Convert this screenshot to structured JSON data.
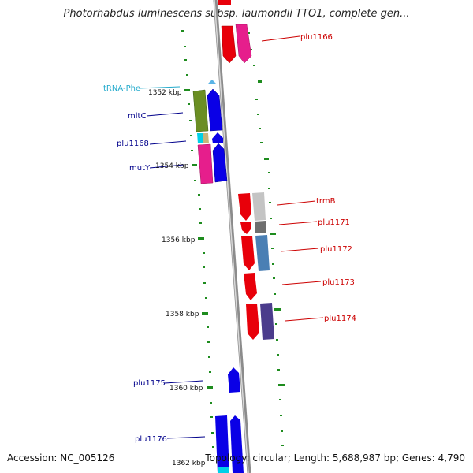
{
  "header": {
    "title": "Photorhabdus luminescens subsp. laumondii TTO1, complete gen..."
  },
  "footer": {
    "accession": "Accession: NC_005126",
    "topology": "Topology: circular; Length: 5,688,987 bp; Genes: 4,790"
  },
  "ticks": [
    "1352 kbp",
    "1354 kbp",
    "1356 kbp",
    "1358 kbp",
    "1360 kbp",
    "1362 kbp"
  ],
  "genes": {
    "plu1166": "plu1166",
    "trna_phe": "tRNA-Phe",
    "mltc": "mltC",
    "plu1168": "plu1168",
    "muty": "mutY",
    "trmb": "trmB",
    "plu1171": "plu1171",
    "plu1172": "plu1172",
    "plu1173": "plu1173",
    "plu1174": "plu1174",
    "plu1175": "plu1175",
    "plu1176": "plu1176"
  },
  "colors": {
    "forward_label": "#cc0000",
    "reverse_label": "#00008b",
    "trna_label": "#22aacc",
    "red": "#e8000a",
    "blue": "#0a00e6",
    "magenta": "#e61e8c",
    "olive": "#6b8e23",
    "cyan": "#00d0e8",
    "gray": "#c4c4c4",
    "dark_gray": "#6e6e6e",
    "steel_blue": "#4a7fb4",
    "slate": "#4b3c8c",
    "tan": "#c8b47a",
    "backbone": "#8c8c8c",
    "gc_marks": "#1e8c1e"
  }
}
